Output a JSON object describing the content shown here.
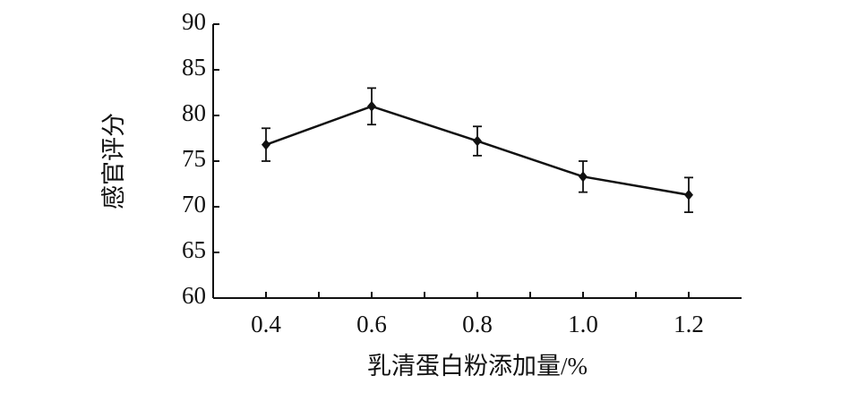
{
  "chart_data": {
    "type": "line",
    "x_label": "乳清蛋白粉添加量/%",
    "y_label": "感官评分",
    "x": [
      0.4,
      0.6,
      0.8,
      1.0,
      1.2
    ],
    "series": [
      {
        "color": "#111111",
        "values": [
          76.8,
          81.0,
          77.2,
          73.3,
          71.3
        ],
        "errors": [
          1.8,
          2.0,
          1.6,
          1.7,
          1.9
        ]
      }
    ],
    "xlim": [
      0.3,
      1.3
    ],
    "xticks": [
      0.4,
      0.6,
      0.8,
      {
        "value": 1.0,
        "label": "1.0"
      },
      1.2
    ],
    "xminor": [
      0.5,
      0.7,
      0.9,
      1.1
    ],
    "ylim": [
      60,
      90
    ],
    "yticks": [
      60,
      65,
      70,
      75,
      80,
      85,
      90
    ]
  }
}
